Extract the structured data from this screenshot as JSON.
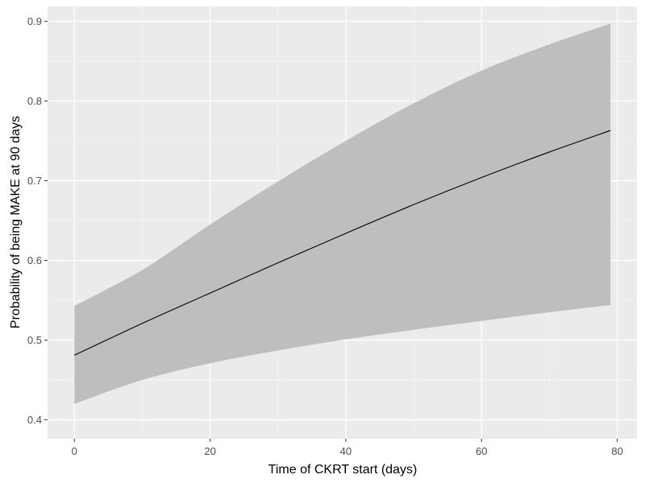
{
  "chart_data": {
    "type": "line",
    "title": "",
    "xlabel": "Time of CKRT start (days)",
    "ylabel": "Probability of being MAKE at 90 days",
    "xlim": [
      -3.95,
      82.9
    ],
    "ylim": [
      0.3763,
      0.9186
    ],
    "x_ticks": [
      0,
      20,
      40,
      60,
      80
    ],
    "x_tick_labels": [
      "0",
      "20",
      "40",
      "60",
      "80"
    ],
    "y_ticks": [
      0.4,
      0.5,
      0.6,
      0.7,
      0.8,
      0.9
    ],
    "y_tick_labels": [
      "0.4",
      "0.5",
      "0.6",
      "0.7",
      "0.8",
      "0.9"
    ],
    "grid": true,
    "legend": "none",
    "colors": {
      "panel_background": "#ebebeb",
      "grid_major": "#ffffff",
      "ribbon": "#bebebe",
      "line": "#000000"
    },
    "series": [
      {
        "x": [
          0,
          10,
          20,
          30,
          40,
          50,
          60,
          70,
          79
        ],
        "values": [
          0.481,
          0.521,
          0.559,
          0.597,
          0.634,
          0.67,
          0.704,
          0.736,
          0.763
        ]
      }
    ],
    "ribbon": {
      "x": [
        0,
        10,
        20,
        30,
        40,
        50,
        60,
        70,
        79
      ],
      "lower": [
        0.42,
        0.45,
        0.471,
        0.487,
        0.501,
        0.513,
        0.524,
        0.535,
        0.544
      ],
      "upper": [
        0.543,
        0.588,
        0.645,
        0.699,
        0.75,
        0.797,
        0.838,
        0.871,
        0.897
      ]
    }
  }
}
